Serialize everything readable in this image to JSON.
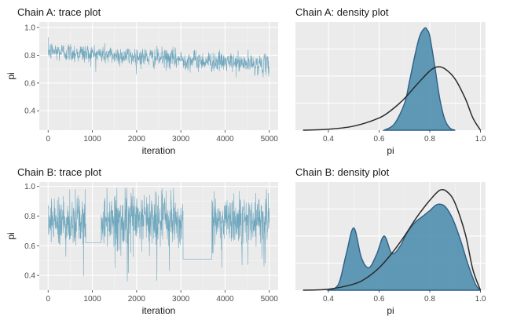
{
  "chart_data": [
    {
      "id": "A-trace",
      "type": "line",
      "title": "Chain A: trace plot",
      "xlabel": "iteration",
      "ylabel": "pi",
      "xlim": [
        -200,
        5200
      ],
      "ylim": [
        0.26,
        1.04
      ],
      "xticks": [
        0,
        1000,
        2000,
        3000,
        4000,
        5000
      ],
      "xtick_labels": [
        "0",
        "1000",
        "2000",
        "3000",
        "4000",
        "5000"
      ],
      "yticks": [
        0.4,
        0.6,
        0.8,
        1.0
      ],
      "ytick_labels": [
        "0.4",
        "0.6",
        "0.8",
        "1.0"
      ],
      "grid": true,
      "trend": {
        "x": [
          0,
          5000
        ],
        "y": [
          0.83,
          0.73
        ]
      },
      "band_halfwidth": 0.08,
      "series_color": "#5a9bb5"
    },
    {
      "id": "A-density",
      "type": "area",
      "title": "Chain A: density plot",
      "xlabel": "pi",
      "ylabel": "",
      "xlim": [
        0.27,
        1.02
      ],
      "ylim": [
        0,
        1.06
      ],
      "xticks": [
        0.4,
        0.6,
        0.8,
        1.0
      ],
      "xtick_labels": [
        "0.4",
        "0.6",
        "0.8",
        "1.0"
      ],
      "grid": true,
      "density": {
        "x": [
          0.62,
          0.66,
          0.7,
          0.72,
          0.74,
          0.76,
          0.78,
          0.79,
          0.8,
          0.82,
          0.84,
          0.86,
          0.88,
          0.9
        ],
        "y": [
          0.0,
          0.06,
          0.26,
          0.48,
          0.72,
          0.92,
          1.0,
          0.98,
          0.92,
          0.62,
          0.3,
          0.1,
          0.02,
          0.0
        ]
      },
      "prior": {
        "x": [
          0.3,
          0.4,
          0.5,
          0.6,
          0.65,
          0.7,
          0.75,
          0.8,
          0.83,
          0.86,
          0.9,
          0.94,
          0.97,
          1.0
        ],
        "y": [
          0.0,
          0.01,
          0.04,
          0.12,
          0.2,
          0.31,
          0.45,
          0.58,
          0.62,
          0.6,
          0.5,
          0.31,
          0.12,
          0.0
        ]
      },
      "fill_color": "#4f8fae",
      "prior_color": "#2b2b2b"
    },
    {
      "id": "B-trace",
      "type": "line",
      "title": "Chain B: trace plot",
      "xlabel": "iteration",
      "ylabel": "pi",
      "xlim": [
        -200,
        5200
      ],
      "ylim": [
        0.3,
        1.03
      ],
      "xticks": [
        0,
        1000,
        2000,
        3000,
        4000,
        5000
      ],
      "xtick_labels": [
        "0",
        "1000",
        "2000",
        "3000",
        "4000",
        "5000"
      ],
      "yticks": [
        0.4,
        0.6,
        0.8,
        1.0
      ],
      "ytick_labels": [
        "0.4",
        "0.6",
        "0.8",
        "1.0"
      ],
      "grid": true,
      "segments": [
        {
          "type": "noise",
          "x0": 0,
          "x1": 850,
          "center": 0.76,
          "low": 0.36,
          "high": 0.98
        },
        {
          "type": "flat",
          "x0": 850,
          "x1": 1200,
          "y": 0.62
        },
        {
          "type": "noise",
          "x0": 1200,
          "x1": 3050,
          "center": 0.78,
          "low": 0.34,
          "high": 0.99
        },
        {
          "type": "flat",
          "x0": 3050,
          "x1": 3700,
          "y": 0.51
        },
        {
          "type": "noise",
          "x0": 3700,
          "x1": 5000,
          "center": 0.78,
          "low": 0.42,
          "high": 0.98
        }
      ],
      "series_color": "#5a9bb5"
    },
    {
      "id": "B-density",
      "type": "area",
      "title": "Chain B: density plot",
      "xlabel": "pi",
      "ylabel": "",
      "xlim": [
        0.27,
        1.02
      ],
      "ylim": [
        0,
        1.06
      ],
      "xticks": [
        0.4,
        0.6,
        0.8,
        1.0
      ],
      "xtick_labels": [
        "0.4",
        "0.6",
        "0.8",
        "1.0"
      ],
      "grid": true,
      "density": {
        "x": [
          0.4,
          0.44,
          0.47,
          0.5,
          0.53,
          0.56,
          0.59,
          0.62,
          0.65,
          0.68,
          0.71,
          0.74,
          0.77,
          0.8,
          0.83,
          0.86,
          0.89,
          0.92,
          0.95,
          0.98,
          1.0
        ],
        "y": [
          0.0,
          0.06,
          0.35,
          0.61,
          0.32,
          0.22,
          0.35,
          0.53,
          0.36,
          0.42,
          0.56,
          0.66,
          0.72,
          0.78,
          0.84,
          0.82,
          0.7,
          0.5,
          0.26,
          0.06,
          0.0
        ]
      },
      "prior": {
        "x": [
          0.3,
          0.4,
          0.5,
          0.55,
          0.6,
          0.65,
          0.7,
          0.75,
          0.8,
          0.84,
          0.87,
          0.9,
          0.94,
          0.97,
          1.0
        ],
        "y": [
          0.0,
          0.01,
          0.06,
          0.12,
          0.22,
          0.36,
          0.53,
          0.72,
          0.88,
          0.98,
          0.96,
          0.85,
          0.55,
          0.2,
          0.0
        ]
      },
      "fill_color": "#4f8fae",
      "prior_color": "#2b2b2b"
    }
  ]
}
